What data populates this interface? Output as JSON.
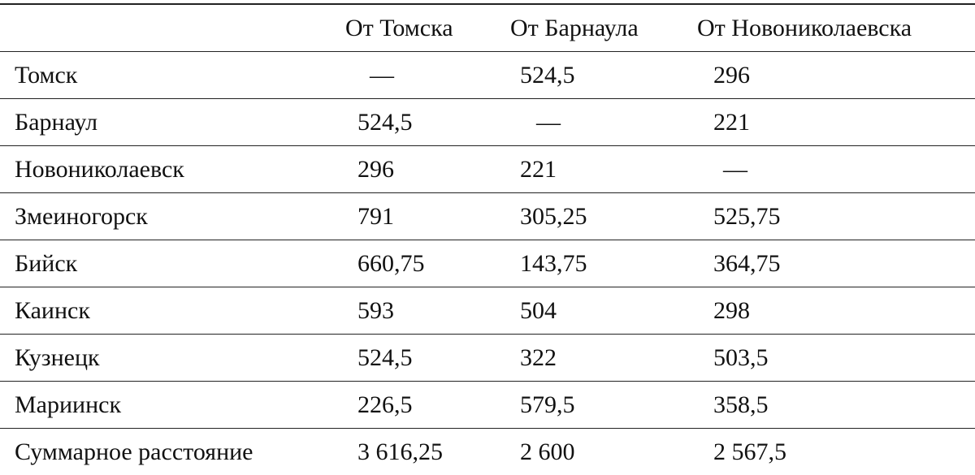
{
  "table": {
    "header": [
      "От Томска",
      "От Барнаула",
      "От Новониколаевска"
    ],
    "rows": [
      [
        "Томск",
        "—",
        "524,5",
        "296"
      ],
      [
        "Барнаул",
        "524,5",
        "—",
        "221"
      ],
      [
        "Новониколаевск",
        "296",
        "221",
        "—"
      ],
      [
        "Змеиногорск",
        "791",
        "305,25",
        "525,75"
      ],
      [
        "Бийск",
        "660,75",
        "143,75",
        "364,75"
      ],
      [
        "Каинск",
        "593",
        "504",
        "298"
      ],
      [
        "Кузнецк",
        "524,5",
        "322",
        "503,5"
      ],
      [
        "Мариинск",
        "226,5",
        "579,5",
        "358,5"
      ],
      [
        "Суммарное расстояние",
        "3 616,25",
        "2 600",
        "2 567,5"
      ]
    ]
  }
}
